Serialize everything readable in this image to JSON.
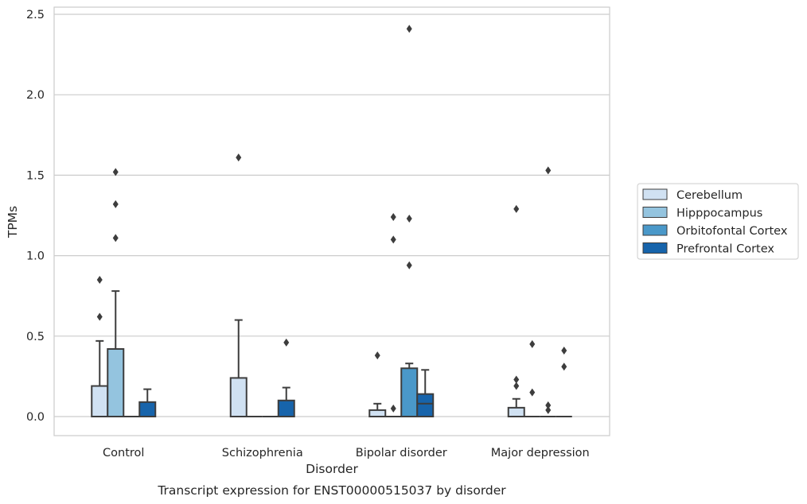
{
  "chart_data": {
    "type": "boxplot",
    "title": "Transcript expression for ENST00000515037 by disorder",
    "xlabel": "Disorder",
    "ylabel": "TPMs",
    "ylim": [
      -0.12,
      2.54
    ],
    "yticks": [
      0.0,
      0.5,
      1.0,
      1.5,
      2.0,
      2.5
    ],
    "ytick_labels": [
      "0.0",
      "0.5",
      "1.0",
      "1.5",
      "2.0",
      "2.5"
    ],
    "grid": "horizontal",
    "legend_position": "right",
    "categories": [
      "Control",
      "Schizophrenia",
      "Bipolar disorder",
      "Major depression"
    ],
    "series": [
      {
        "name": "Cerebellum",
        "color": "#d0e1f2",
        "boxes": [
          {
            "q1": 0,
            "median": 0,
            "q3": 0.19,
            "whislo": 0,
            "whishi": 0.47,
            "fliers": [
              0.62,
              0.85
            ]
          },
          {
            "q1": 0,
            "median": 0,
            "q3": 0.24,
            "whislo": 0,
            "whishi": 0.6,
            "fliers": [
              1.61
            ]
          },
          {
            "q1": 0,
            "median": 0,
            "q3": 0.04,
            "whislo": 0,
            "whishi": 0.08,
            "fliers": [
              0.38
            ]
          },
          {
            "q1": 0,
            "median": 0,
            "q3": 0.055,
            "whislo": 0,
            "whishi": 0.11,
            "fliers": [
              0.19,
              0.23,
              1.29
            ]
          }
        ]
      },
      {
        "name": "Hipppocampus",
        "color": "#94c4df",
        "boxes": [
          {
            "q1": 0,
            "median": 0,
            "q3": 0.42,
            "whislo": 0,
            "whishi": 0.78,
            "fliers": [
              1.11,
              1.32,
              1.52
            ]
          },
          {
            "q1": 0,
            "median": 0,
            "q3": 0,
            "whislo": 0,
            "whishi": 0,
            "fliers": []
          },
          {
            "q1": 0,
            "median": 0,
            "q3": 0,
            "whislo": 0,
            "whishi": 0,
            "fliers": [
              0.05,
              1.1,
              1.24
            ]
          },
          {
            "q1": 0,
            "median": 0,
            "q3": 0,
            "whislo": 0,
            "whishi": 0,
            "fliers": [
              0.15,
              0.45
            ]
          }
        ]
      },
      {
        "name": "Orbitofontal Cortex",
        "color": "#4a98c9",
        "boxes": [
          {
            "q1": 0,
            "median": 0,
            "q3": 0,
            "whislo": 0,
            "whishi": 0,
            "fliers": []
          },
          {
            "q1": 0,
            "median": 0,
            "q3": 0,
            "whislo": 0,
            "whishi": 0,
            "fliers": []
          },
          {
            "q1": 0,
            "median": 0,
            "q3": 0.3,
            "whislo": 0,
            "whishi": 0.33,
            "fliers": [
              0.94,
              1.23,
              2.41
            ]
          },
          {
            "q1": 0,
            "median": 0,
            "q3": 0,
            "whislo": 0,
            "whishi": 0,
            "fliers": [
              0.04,
              0.07,
              1.53
            ]
          }
        ]
      },
      {
        "name": "Prefrontal Cortex",
        "color": "#1764ab",
        "boxes": [
          {
            "q1": 0,
            "median": 0,
            "q3": 0.09,
            "whislo": 0,
            "whishi": 0.17,
            "fliers": []
          },
          {
            "q1": 0,
            "median": 0,
            "q3": 0.1,
            "whislo": 0,
            "whishi": 0.18,
            "fliers": [
              0.46
            ]
          },
          {
            "q1": 0,
            "median": 0.08,
            "q3": 0.14,
            "whislo": 0,
            "whishi": 0.29,
            "fliers": []
          },
          {
            "q1": 0,
            "median": 0,
            "q3": 0,
            "whislo": 0,
            "whishi": 0,
            "fliers": [
              0.31,
              0.41
            ]
          }
        ]
      }
    ]
  }
}
